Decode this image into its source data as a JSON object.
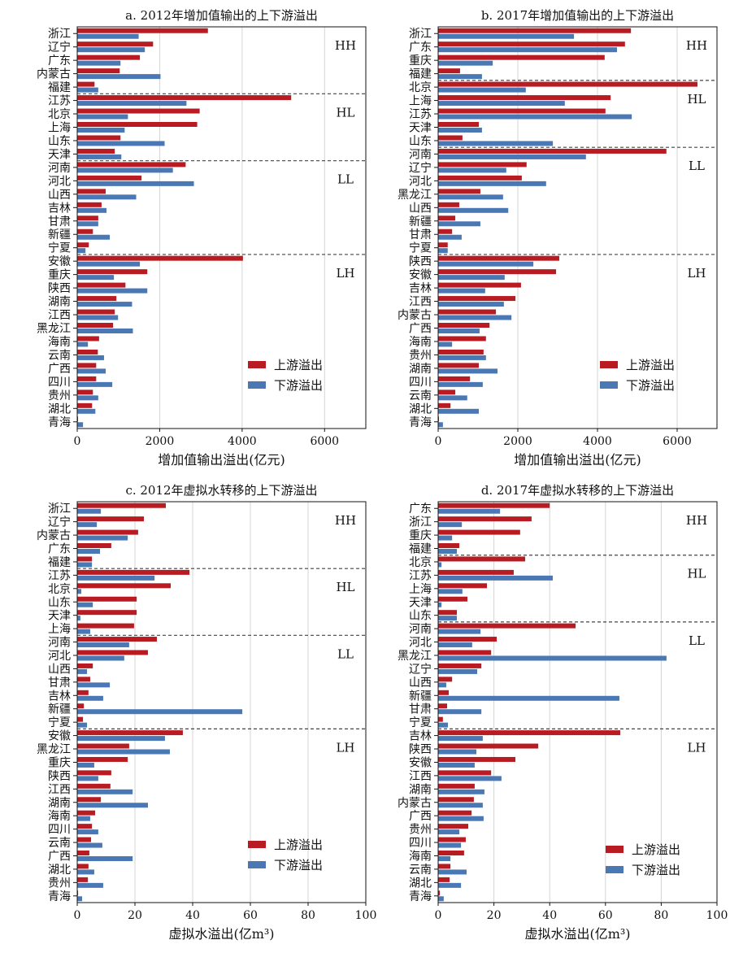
{
  "legend": {
    "upstream": "上游溢出",
    "downstream": "下游溢出"
  },
  "colors": {
    "upstream": "#b81c22",
    "downstream": "#4a78b5",
    "grid": "#d4d4d4"
  },
  "chart_data": [
    {
      "type": "bar",
      "title": "a. 2012年增加值输出的上下游溢出",
      "xlabel": "增加值输出溢出(亿元)",
      "xlim": [
        0,
        7000
      ],
      "xticks": [
        0,
        2000,
        4000,
        6000
      ],
      "grid": true,
      "legend_position": "bottom-right",
      "groups": [
        {
          "label": "HH",
          "categories": [
            "浙江",
            "辽宁",
            "广东",
            "内蒙古",
            "福建"
          ]
        },
        {
          "label": "HL",
          "categories": [
            "江苏",
            "北京",
            "上海",
            "山东",
            "天津"
          ]
        },
        {
          "label": "LL",
          "categories": [
            "河南",
            "河北",
            "山西",
            "吉林",
            "甘肃",
            "新疆",
            "宁夏"
          ]
        },
        {
          "label": "LH",
          "categories": [
            "安徽",
            "重庆",
            "陕西",
            "湖南",
            "江西",
            "黑龙江",
            "海南",
            "云南",
            "广西",
            "四川",
            "贵州",
            "湖北",
            "青海"
          ]
        }
      ],
      "series": [
        {
          "name": "上游溢出",
          "values": [
            3170,
            1840,
            1520,
            1030,
            420,
            5190,
            2970,
            2910,
            1050,
            910,
            2630,
            1560,
            690,
            590,
            510,
            380,
            280,
            4020,
            1700,
            1170,
            950,
            910,
            870,
            530,
            500,
            460,
            460,
            380,
            360,
            20
          ]
        },
        {
          "name": "下游溢出",
          "values": [
            1490,
            1640,
            1050,
            2020,
            510,
            2650,
            1230,
            1150,
            2120,
            1070,
            2320,
            2830,
            1430,
            710,
            510,
            790,
            200,
            1520,
            890,
            1700,
            1330,
            990,
            1350,
            260,
            650,
            690,
            850,
            510,
            440,
            140
          ]
        }
      ]
    },
    {
      "type": "bar",
      "title": "b. 2017年增加值输出的上下游溢出",
      "xlabel": "增加值输出溢出(亿元)",
      "xlim": [
        0,
        7000
      ],
      "xticks": [
        0,
        2000,
        4000,
        6000
      ],
      "grid": true,
      "legend_position": "bottom-right",
      "groups": [
        {
          "label": "HH",
          "categories": [
            "浙江",
            "广东",
            "重庆",
            "福建"
          ]
        },
        {
          "label": "HL",
          "categories": [
            "北京",
            "上海",
            "江苏",
            "天津",
            "山东"
          ]
        },
        {
          "label": "LL",
          "categories": [
            "河南",
            "辽宁",
            "河北",
            "黑龙江",
            "山西",
            "新疆",
            "甘肃",
            "宁夏"
          ]
        },
        {
          "label": "LH",
          "categories": [
            "陕西",
            "安徽",
            "吉林",
            "江西",
            "内蒙古",
            "广西",
            "海南",
            "贵州",
            "湖南",
            "四川",
            "云南",
            "湖北",
            "青海"
          ]
        }
      ],
      "series": [
        {
          "name": "上游溢出",
          "values": [
            4840,
            4690,
            4180,
            550,
            6510,
            4330,
            4200,
            1020,
            610,
            5730,
            2220,
            2100,
            1060,
            530,
            430,
            350,
            240,
            3040,
            2960,
            2080,
            1940,
            1450,
            1290,
            1200,
            1140,
            1020,
            800,
            430,
            310,
            20
          ]
        },
        {
          "name": "下游溢出",
          "values": [
            3410,
            4490,
            1370,
            1100,
            2200,
            3180,
            4860,
            1100,
            2880,
            3710,
            1710,
            2710,
            1630,
            1760,
            1060,
            590,
            240,
            2390,
            1670,
            1180,
            1650,
            1840,
            1040,
            350,
            1200,
            1490,
            1120,
            730,
            1020,
            120
          ]
        }
      ]
    },
    {
      "type": "bar",
      "title": "c. 2012年虚拟水转移的上下游溢出",
      "xlabel": "虚拟水溢出(亿m³)",
      "xlim": [
        0,
        100
      ],
      "xticks": [
        0,
        20,
        40,
        60,
        80,
        100
      ],
      "grid": true,
      "legend_position": "bottom-right",
      "groups": [
        {
          "label": "HH",
          "categories": [
            "浙江",
            "辽宁",
            "内蒙古",
            "广东",
            "福建"
          ]
        },
        {
          "label": "HL",
          "categories": [
            "江苏",
            "北京",
            "山东",
            "天津",
            "上海"
          ]
        },
        {
          "label": "LL",
          "categories": [
            "河南",
            "河北",
            "山西",
            "甘肃",
            "吉林",
            "新疆",
            "宁夏"
          ]
        },
        {
          "label": "LH",
          "categories": [
            "安徽",
            "黑龙江",
            "重庆",
            "陕西",
            "江西",
            "湖南",
            "海南",
            "四川",
            "云南",
            "广西",
            "湖北",
            "贵州",
            "青海"
          ]
        }
      ],
      "series": [
        {
          "name": "上游溢出",
          "values": [
            30.7,
            23.1,
            21.1,
            11.8,
            5.1,
            38.9,
            32.4,
            20.6,
            20.6,
            19.7,
            27.6,
            24.5,
            5.4,
            4.5,
            3.9,
            2.3,
            2.0,
            36.6,
            18.0,
            17.5,
            11.8,
            11.5,
            8.2,
            6.2,
            5.1,
            4.8,
            4.2,
            3.9,
            3.7,
            0.3
          ]
        },
        {
          "name": "下游溢出",
          "values": [
            8.2,
            6.8,
            17.5,
            7.9,
            5.1,
            26.8,
            1.4,
            5.4,
            1.1,
            4.5,
            18.0,
            16.3,
            3.4,
            11.3,
            9.0,
            57.2,
            3.4,
            30.4,
            32.1,
            5.9,
            7.3,
            19.2,
            24.5,
            4.5,
            7.3,
            8.7,
            19.2,
            5.9,
            9.0,
            1.7
          ]
        }
      ]
    },
    {
      "type": "bar",
      "title": "d. 2017年虚拟水转移的上下游溢出",
      "xlabel": "虚拟水溢出(亿m³)",
      "xlim": [
        0,
        100
      ],
      "xticks": [
        0,
        20,
        40,
        60,
        80,
        100
      ],
      "grid": true,
      "legend_position": "bottom-right",
      "groups": [
        {
          "label": "HH",
          "categories": [
            "广东",
            "浙江",
            "重庆",
            "福建"
          ]
        },
        {
          "label": "HL",
          "categories": [
            "北京",
            "江苏",
            "上海",
            "天津",
            "山东"
          ]
        },
        {
          "label": "LL",
          "categories": [
            "河南",
            "河北",
            "黑龙江",
            "辽宁",
            "山西",
            "新疆",
            "甘肃",
            "宁夏"
          ]
        },
        {
          "label": "LH",
          "categories": [
            "吉林",
            "陕西",
            "安徽",
            "江西",
            "湖南",
            "内蒙古",
            "广西",
            "贵州",
            "四川",
            "海南",
            "云南",
            "湖北",
            "青海"
          ]
        }
      ],
      "series": [
        {
          "name": "上游溢出",
          "values": [
            40.0,
            33.5,
            29.4,
            7.6,
            31.2,
            27.1,
            17.5,
            10.5,
            6.7,
            49.3,
            21.0,
            19.0,
            15.5,
            5.0,
            3.8,
            3.2,
            1.7,
            65.3,
            35.9,
            27.7,
            19.0,
            13.1,
            12.8,
            12.0,
            10.8,
            9.9,
            9.3,
            4.4,
            4.1,
            0.6
          ]
        },
        {
          "name": "下游溢出",
          "values": [
            22.2,
            8.5,
            5.0,
            6.7,
            1.2,
            41.1,
            8.7,
            1.2,
            6.7,
            15.2,
            12.2,
            81.9,
            14.0,
            2.9,
            65.0,
            15.5,
            3.5,
            16.0,
            13.7,
            13.1,
            22.7,
            16.6,
            16.0,
            16.3,
            7.6,
            8.2,
            4.4,
            10.2,
            8.2,
            2.0
          ]
        }
      ]
    }
  ]
}
